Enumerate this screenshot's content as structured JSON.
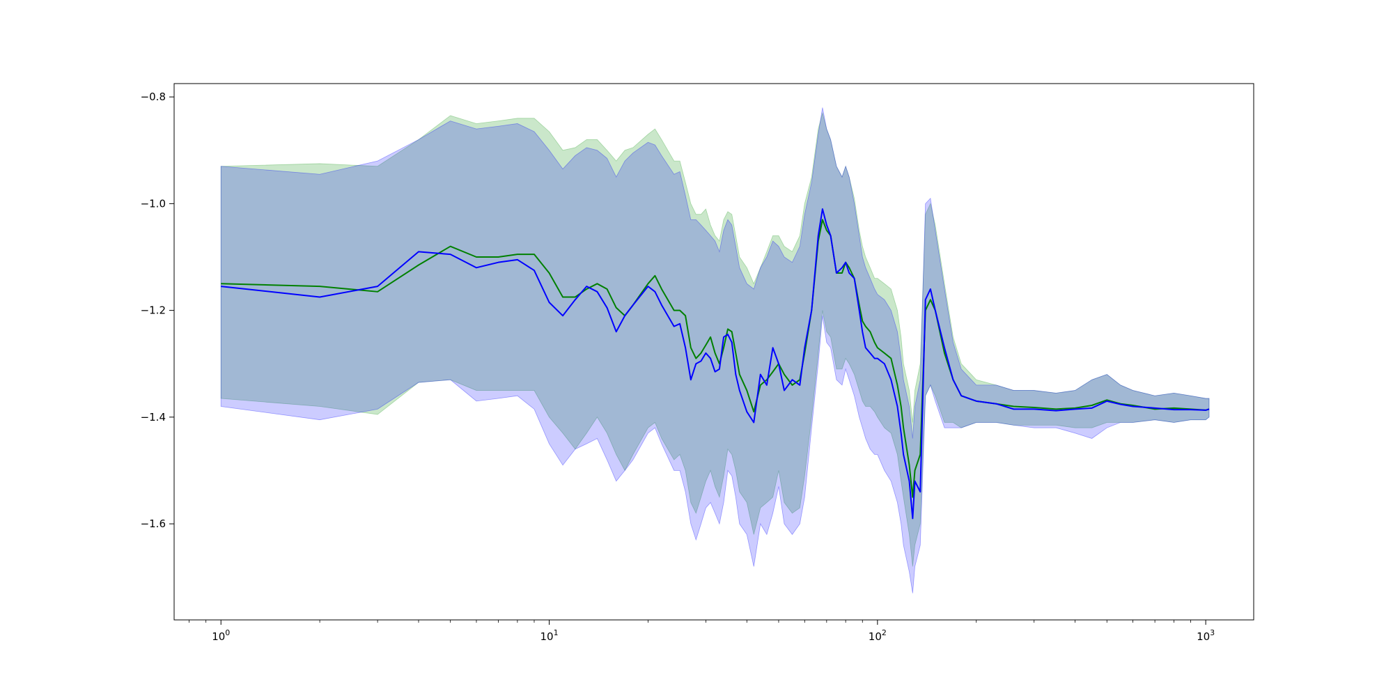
{
  "chart_data": {
    "type": "line",
    "title": "",
    "xlabel": "",
    "ylabel": "",
    "xscale": "log",
    "xlim": [
      0.72,
      1400
    ],
    "ylim": [
      -1.78,
      -0.775
    ],
    "grid": false,
    "x_ticks": [
      {
        "value": 1,
        "base": "10",
        "exp": "0"
      },
      {
        "value": 10,
        "base": "10",
        "exp": "1"
      },
      {
        "value": 100,
        "base": "10",
        "exp": "2"
      },
      {
        "value": 1000,
        "base": "10",
        "exp": "3"
      }
    ],
    "y_ticks": [
      {
        "value": -0.8,
        "label": "−0.8"
      },
      {
        "value": -1.0,
        "label": "−1.0"
      },
      {
        "value": -1.2,
        "label": "−1.2"
      },
      {
        "value": -1.4,
        "label": "−1.4"
      },
      {
        "value": -1.6,
        "label": "−1.6"
      }
    ],
    "series": [
      {
        "color": "#008000",
        "band_color": "#2ca02c",
        "band_opacity": 0.25,
        "x": [
          1,
          2,
          3,
          4,
          5,
          6,
          7,
          8,
          9,
          10,
          11,
          12,
          13,
          14,
          15,
          16,
          17,
          18,
          20,
          21,
          22,
          24,
          25,
          26,
          27,
          28,
          29,
          30,
          31,
          32,
          33,
          34,
          35,
          36,
          37,
          38,
          40,
          42,
          44,
          46,
          48,
          50,
          52,
          55,
          58,
          60,
          63,
          66,
          68,
          70,
          72,
          75,
          78,
          80,
          82,
          85,
          88,
          90,
          92,
          95,
          98,
          100,
          105,
          110,
          115,
          118,
          120,
          125,
          128,
          130,
          135,
          140,
          145,
          150,
          160,
          170,
          180,
          200,
          230,
          260,
          300,
          350,
          400,
          450,
          500,
          550,
          600,
          700,
          800,
          900,
          1000,
          1024
        ],
        "y": [
          -1.15,
          -1.155,
          -1.165,
          -1.115,
          -1.08,
          -1.1,
          -1.1,
          -1.095,
          -1.095,
          -1.13,
          -1.175,
          -1.175,
          -1.16,
          -1.15,
          -1.16,
          -1.195,
          -1.21,
          -1.19,
          -1.15,
          -1.135,
          -1.16,
          -1.2,
          -1.2,
          -1.21,
          -1.27,
          -1.29,
          -1.28,
          -1.265,
          -1.25,
          -1.28,
          -1.3,
          -1.27,
          -1.235,
          -1.24,
          -1.28,
          -1.32,
          -1.35,
          -1.39,
          -1.34,
          -1.33,
          -1.315,
          -1.3,
          -1.32,
          -1.34,
          -1.33,
          -1.28,
          -1.2,
          -1.07,
          -1.03,
          -1.05,
          -1.06,
          -1.13,
          -1.13,
          -1.11,
          -1.12,
          -1.14,
          -1.19,
          -1.22,
          -1.23,
          -1.24,
          -1.26,
          -1.27,
          -1.28,
          -1.29,
          -1.34,
          -1.38,
          -1.42,
          -1.49,
          -1.55,
          -1.5,
          -1.47,
          -1.2,
          -1.18,
          -1.2,
          -1.28,
          -1.33,
          -1.36,
          -1.37,
          -1.375,
          -1.38,
          -1.382,
          -1.385,
          -1.383,
          -1.378,
          -1.368,
          -1.375,
          -1.378,
          -1.385,
          -1.383,
          -1.385,
          -1.387,
          -1.385
        ],
        "upper": [
          -0.93,
          -0.925,
          -0.93,
          -0.88,
          -0.835,
          -0.85,
          -0.845,
          -0.84,
          -0.84,
          -0.865,
          -0.9,
          -0.895,
          -0.88,
          -0.88,
          -0.9,
          -0.92,
          -0.9,
          -0.895,
          -0.87,
          -0.86,
          -0.88,
          -0.92,
          -0.92,
          -0.96,
          -1.0,
          -1.02,
          -1.02,
          -1.01,
          -1.04,
          -1.06,
          -1.07,
          -1.03,
          -1.015,
          -1.02,
          -1.06,
          -1.1,
          -1.12,
          -1.15,
          -1.12,
          -1.09,
          -1.06,
          -1.06,
          -1.08,
          -1.09,
          -1.06,
          -1.0,
          -0.95,
          -0.86,
          -0.83,
          -0.86,
          -0.88,
          -0.93,
          -0.95,
          -0.93,
          -0.95,
          -0.99,
          -1.05,
          -1.08,
          -1.1,
          -1.12,
          -1.14,
          -1.14,
          -1.15,
          -1.16,
          -1.2,
          -1.25,
          -1.3,
          -1.35,
          -1.41,
          -1.35,
          -1.3,
          -1.02,
          -1.0,
          -1.04,
          -1.15,
          -1.25,
          -1.3,
          -1.33,
          -1.34,
          -1.35,
          -1.35,
          -1.355,
          -1.35,
          -1.33,
          -1.32,
          -1.34,
          -1.35,
          -1.36,
          -1.355,
          -1.36,
          -1.365,
          -1.365
        ],
        "lower": [
          -1.365,
          -1.38,
          -1.395,
          -1.335,
          -1.33,
          -1.35,
          -1.35,
          -1.35,
          -1.35,
          -1.4,
          -1.43,
          -1.46,
          -1.43,
          -1.4,
          -1.43,
          -1.47,
          -1.5,
          -1.47,
          -1.42,
          -1.41,
          -1.44,
          -1.48,
          -1.47,
          -1.5,
          -1.56,
          -1.58,
          -1.55,
          -1.52,
          -1.5,
          -1.53,
          -1.55,
          -1.51,
          -1.46,
          -1.47,
          -1.5,
          -1.54,
          -1.56,
          -1.62,
          -1.57,
          -1.56,
          -1.55,
          -1.5,
          -1.56,
          -1.58,
          -1.57,
          -1.51,
          -1.4,
          -1.28,
          -1.2,
          -1.24,
          -1.25,
          -1.31,
          -1.31,
          -1.29,
          -1.3,
          -1.32,
          -1.35,
          -1.37,
          -1.38,
          -1.38,
          -1.39,
          -1.4,
          -1.42,
          -1.43,
          -1.47,
          -1.52,
          -1.55,
          -1.62,
          -1.68,
          -1.64,
          -1.6,
          -1.36,
          -1.34,
          -1.36,
          -1.41,
          -1.41,
          -1.42,
          -1.41,
          -1.41,
          -1.415,
          -1.415,
          -1.415,
          -1.42,
          -1.42,
          -1.41,
          -1.41,
          -1.41,
          -1.405,
          -1.41,
          -1.405,
          -1.405,
          -1.4
        ]
      },
      {
        "color": "#0000ff",
        "band_color": "#0000ff",
        "band_opacity": 0.2,
        "x": [
          1,
          2,
          3,
          4,
          5,
          6,
          7,
          8,
          9,
          10,
          11,
          12,
          13,
          14,
          15,
          16,
          17,
          18,
          20,
          21,
          22,
          24,
          25,
          26,
          27,
          28,
          29,
          30,
          31,
          32,
          33,
          34,
          35,
          36,
          37,
          38,
          40,
          42,
          44,
          46,
          48,
          50,
          52,
          55,
          58,
          60,
          63,
          66,
          68,
          70,
          72,
          75,
          78,
          80,
          82,
          85,
          88,
          90,
          92,
          95,
          98,
          100,
          105,
          110,
          115,
          118,
          120,
          125,
          128,
          130,
          135,
          140,
          145,
          150,
          160,
          170,
          180,
          200,
          230,
          260,
          300,
          350,
          400,
          450,
          500,
          550,
          600,
          700,
          800,
          900,
          1000,
          1024
        ],
        "y": [
          -1.155,
          -1.175,
          -1.155,
          -1.09,
          -1.095,
          -1.12,
          -1.11,
          -1.105,
          -1.125,
          -1.185,
          -1.21,
          -1.18,
          -1.155,
          -1.165,
          -1.195,
          -1.24,
          -1.21,
          -1.19,
          -1.155,
          -1.165,
          -1.19,
          -1.23,
          -1.225,
          -1.27,
          -1.33,
          -1.3,
          -1.295,
          -1.28,
          -1.29,
          -1.315,
          -1.31,
          -1.25,
          -1.245,
          -1.26,
          -1.32,
          -1.35,
          -1.39,
          -1.41,
          -1.32,
          -1.34,
          -1.27,
          -1.3,
          -1.35,
          -1.33,
          -1.34,
          -1.27,
          -1.2,
          -1.06,
          -1.01,
          -1.04,
          -1.06,
          -1.13,
          -1.12,
          -1.11,
          -1.13,
          -1.14,
          -1.2,
          -1.24,
          -1.27,
          -1.28,
          -1.29,
          -1.29,
          -1.3,
          -1.33,
          -1.38,
          -1.43,
          -1.47,
          -1.52,
          -1.59,
          -1.52,
          -1.54,
          -1.18,
          -1.16,
          -1.2,
          -1.27,
          -1.33,
          -1.36,
          -1.37,
          -1.375,
          -1.385,
          -1.385,
          -1.388,
          -1.385,
          -1.383,
          -1.37,
          -1.376,
          -1.38,
          -1.383,
          -1.386,
          -1.386,
          -1.387,
          -1.385
        ],
        "upper": [
          -0.93,
          -0.945,
          -0.92,
          -0.88,
          -0.845,
          -0.86,
          -0.855,
          -0.85,
          -0.865,
          -0.9,
          -0.935,
          -0.91,
          -0.895,
          -0.9,
          -0.915,
          -0.95,
          -0.92,
          -0.905,
          -0.885,
          -0.89,
          -0.91,
          -0.945,
          -0.94,
          -0.985,
          -1.03,
          -1.03,
          -1.04,
          -1.05,
          -1.06,
          -1.07,
          -1.09,
          -1.05,
          -1.03,
          -1.04,
          -1.08,
          -1.12,
          -1.15,
          -1.16,
          -1.12,
          -1.1,
          -1.07,
          -1.08,
          -1.1,
          -1.11,
          -1.08,
          -1.02,
          -0.96,
          -0.87,
          -0.82,
          -0.86,
          -0.88,
          -0.93,
          -0.95,
          -0.93,
          -0.95,
          -1.0,
          -1.06,
          -1.1,
          -1.12,
          -1.14,
          -1.16,
          -1.17,
          -1.18,
          -1.2,
          -1.24,
          -1.29,
          -1.33,
          -1.38,
          -1.44,
          -1.38,
          -1.33,
          -1.0,
          -0.99,
          -1.05,
          -1.16,
          -1.26,
          -1.31,
          -1.34,
          -1.34,
          -1.35,
          -1.35,
          -1.355,
          -1.35,
          -1.33,
          -1.32,
          -1.34,
          -1.35,
          -1.36,
          -1.355,
          -1.36,
          -1.365,
          -1.365
        ],
        "lower": [
          -1.38,
          -1.405,
          -1.385,
          -1.335,
          -1.33,
          -1.37,
          -1.365,
          -1.36,
          -1.385,
          -1.45,
          -1.49,
          -1.46,
          -1.45,
          -1.44,
          -1.48,
          -1.52,
          -1.5,
          -1.48,
          -1.43,
          -1.42,
          -1.45,
          -1.5,
          -1.5,
          -1.54,
          -1.6,
          -1.63,
          -1.6,
          -1.57,
          -1.56,
          -1.58,
          -1.6,
          -1.56,
          -1.5,
          -1.51,
          -1.55,
          -1.6,
          -1.62,
          -1.68,
          -1.6,
          -1.62,
          -1.58,
          -1.53,
          -1.6,
          -1.62,
          -1.6,
          -1.55,
          -1.42,
          -1.3,
          -1.21,
          -1.26,
          -1.27,
          -1.33,
          -1.34,
          -1.31,
          -1.33,
          -1.36,
          -1.4,
          -1.42,
          -1.44,
          -1.46,
          -1.47,
          -1.47,
          -1.5,
          -1.52,
          -1.56,
          -1.6,
          -1.64,
          -1.69,
          -1.73,
          -1.68,
          -1.64,
          -1.36,
          -1.34,
          -1.37,
          -1.42,
          -1.42,
          -1.42,
          -1.41,
          -1.41,
          -1.415,
          -1.42,
          -1.42,
          -1.43,
          -1.44,
          -1.42,
          -1.41,
          -1.41,
          -1.405,
          -1.41,
          -1.405,
          -1.405,
          -1.4
        ]
      }
    ]
  }
}
